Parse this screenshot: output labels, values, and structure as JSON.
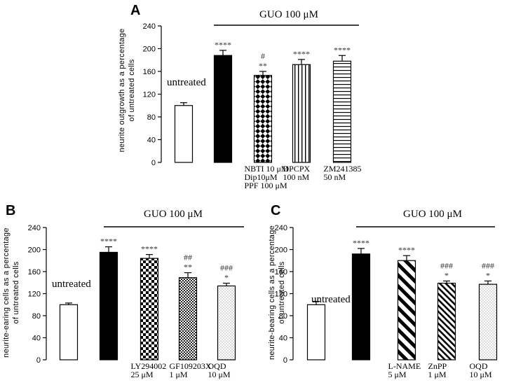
{
  "chart_data": [
    {
      "type": "bar",
      "panel": "A",
      "ylabel_line1": "neurite outgrowth as a percentage",
      "ylabel_line2": "of untreated cells",
      "ylim": [
        0,
        240
      ],
      "yticks": [
        0,
        40,
        80,
        120,
        160,
        200,
        240
      ],
      "treatment_label": "GUO 100 μM",
      "inline_label": "untreated",
      "bars": [
        {
          "name": "untreated",
          "value": 100,
          "error": 5,
          "pattern": "white",
          "sig_top": "",
          "sig_bottom": "",
          "label_lines": []
        },
        {
          "name": "GUO",
          "value": 188,
          "error": 9,
          "pattern": "black",
          "sig_top": "",
          "sig_bottom": "****",
          "label_lines": []
        },
        {
          "name": "NBTI+Dip+PPF",
          "value": 153,
          "error": 7,
          "pattern": "checker-diag",
          "sig_top": "#",
          "sig_bottom": "**",
          "label_lines": [
            "NBTI 10 μM",
            "Dip10μM",
            "PPF 100 μM"
          ]
        },
        {
          "name": "DPCPX",
          "value": 172,
          "error": 9,
          "pattern": "vertical",
          "sig_top": "",
          "sig_bottom": "****",
          "label_lines": [
            "DPCPX",
            "100 nM"
          ]
        },
        {
          "name": "ZM241385",
          "value": 178,
          "error": 10,
          "pattern": "horizontal",
          "sig_top": "",
          "sig_bottom": "****",
          "label_lines": [
            "ZM241385",
            "50 nM"
          ]
        }
      ]
    },
    {
      "type": "bar",
      "panel": "B",
      "ylabel_line1": "neurite-earing cells as a percentage",
      "ylabel_line2": "of untreated cells",
      "ylim": [
        0,
        240
      ],
      "yticks": [
        0,
        40,
        80,
        120,
        160,
        200,
        240
      ],
      "treatment_label": "GUO 100 μM",
      "inline_label": "untreated",
      "bars": [
        {
          "name": "untreated",
          "value": 100,
          "error": 3,
          "pattern": "white",
          "sig_top": "",
          "sig_bottom": "",
          "label_lines": []
        },
        {
          "name": "GUO",
          "value": 195,
          "error": 10,
          "pattern": "black",
          "sig_top": "",
          "sig_bottom": "****",
          "label_lines": []
        },
        {
          "name": "LY294002",
          "value": 184,
          "error": 7,
          "pattern": "checker",
          "sig_top": "",
          "sig_bottom": "****",
          "label_lines": [
            "LY294002",
            "25 μM"
          ]
        },
        {
          "name": "GF109203X",
          "value": 149,
          "error": 9,
          "pattern": "checker-small",
          "sig_top": "##",
          "sig_bottom": "**",
          "label_lines": [
            "GF109203X",
            "1 μM"
          ]
        },
        {
          "name": "OQD",
          "value": 134,
          "error": 5,
          "pattern": "dots",
          "sig_top": "###",
          "sig_bottom": "*",
          "label_lines": [
            "OQD",
            "10 μM"
          ]
        }
      ]
    },
    {
      "type": "bar",
      "panel": "C",
      "ylabel_line1": "neurite-bearing cells as a percentage",
      "ylabel_line2": "of untreated cells",
      "ylim": [
        0,
        240
      ],
      "yticks": [
        0,
        40,
        80,
        120,
        160,
        200,
        240
      ],
      "treatment_label": "GUO 100 μM",
      "inline_label": "untreated",
      "bars": [
        {
          "name": "untreated",
          "value": 100,
          "error": 6,
          "pattern": "white",
          "sig_top": "",
          "sig_bottom": "",
          "label_lines": []
        },
        {
          "name": "GUO",
          "value": 192,
          "error": 10,
          "pattern": "black",
          "sig_top": "",
          "sig_bottom": "****",
          "label_lines": []
        },
        {
          "name": "L-NAME",
          "value": 180,
          "error": 9,
          "pattern": "diag-wide",
          "sig_top": "",
          "sig_bottom": "****",
          "label_lines": [
            "L-NAME",
            "5 μM"
          ]
        },
        {
          "name": "ZnPP",
          "value": 139,
          "error": 4,
          "pattern": "diag-dense",
          "sig_top": "###",
          "sig_bottom": "*",
          "label_lines": [
            "ZnPP",
            "1 μM"
          ]
        },
        {
          "name": "OQD",
          "value": 137,
          "error": 6,
          "pattern": "dots",
          "sig_top": "###",
          "sig_bottom": "*",
          "label_lines": [
            "OQD",
            "10 μM"
          ]
        }
      ]
    }
  ]
}
